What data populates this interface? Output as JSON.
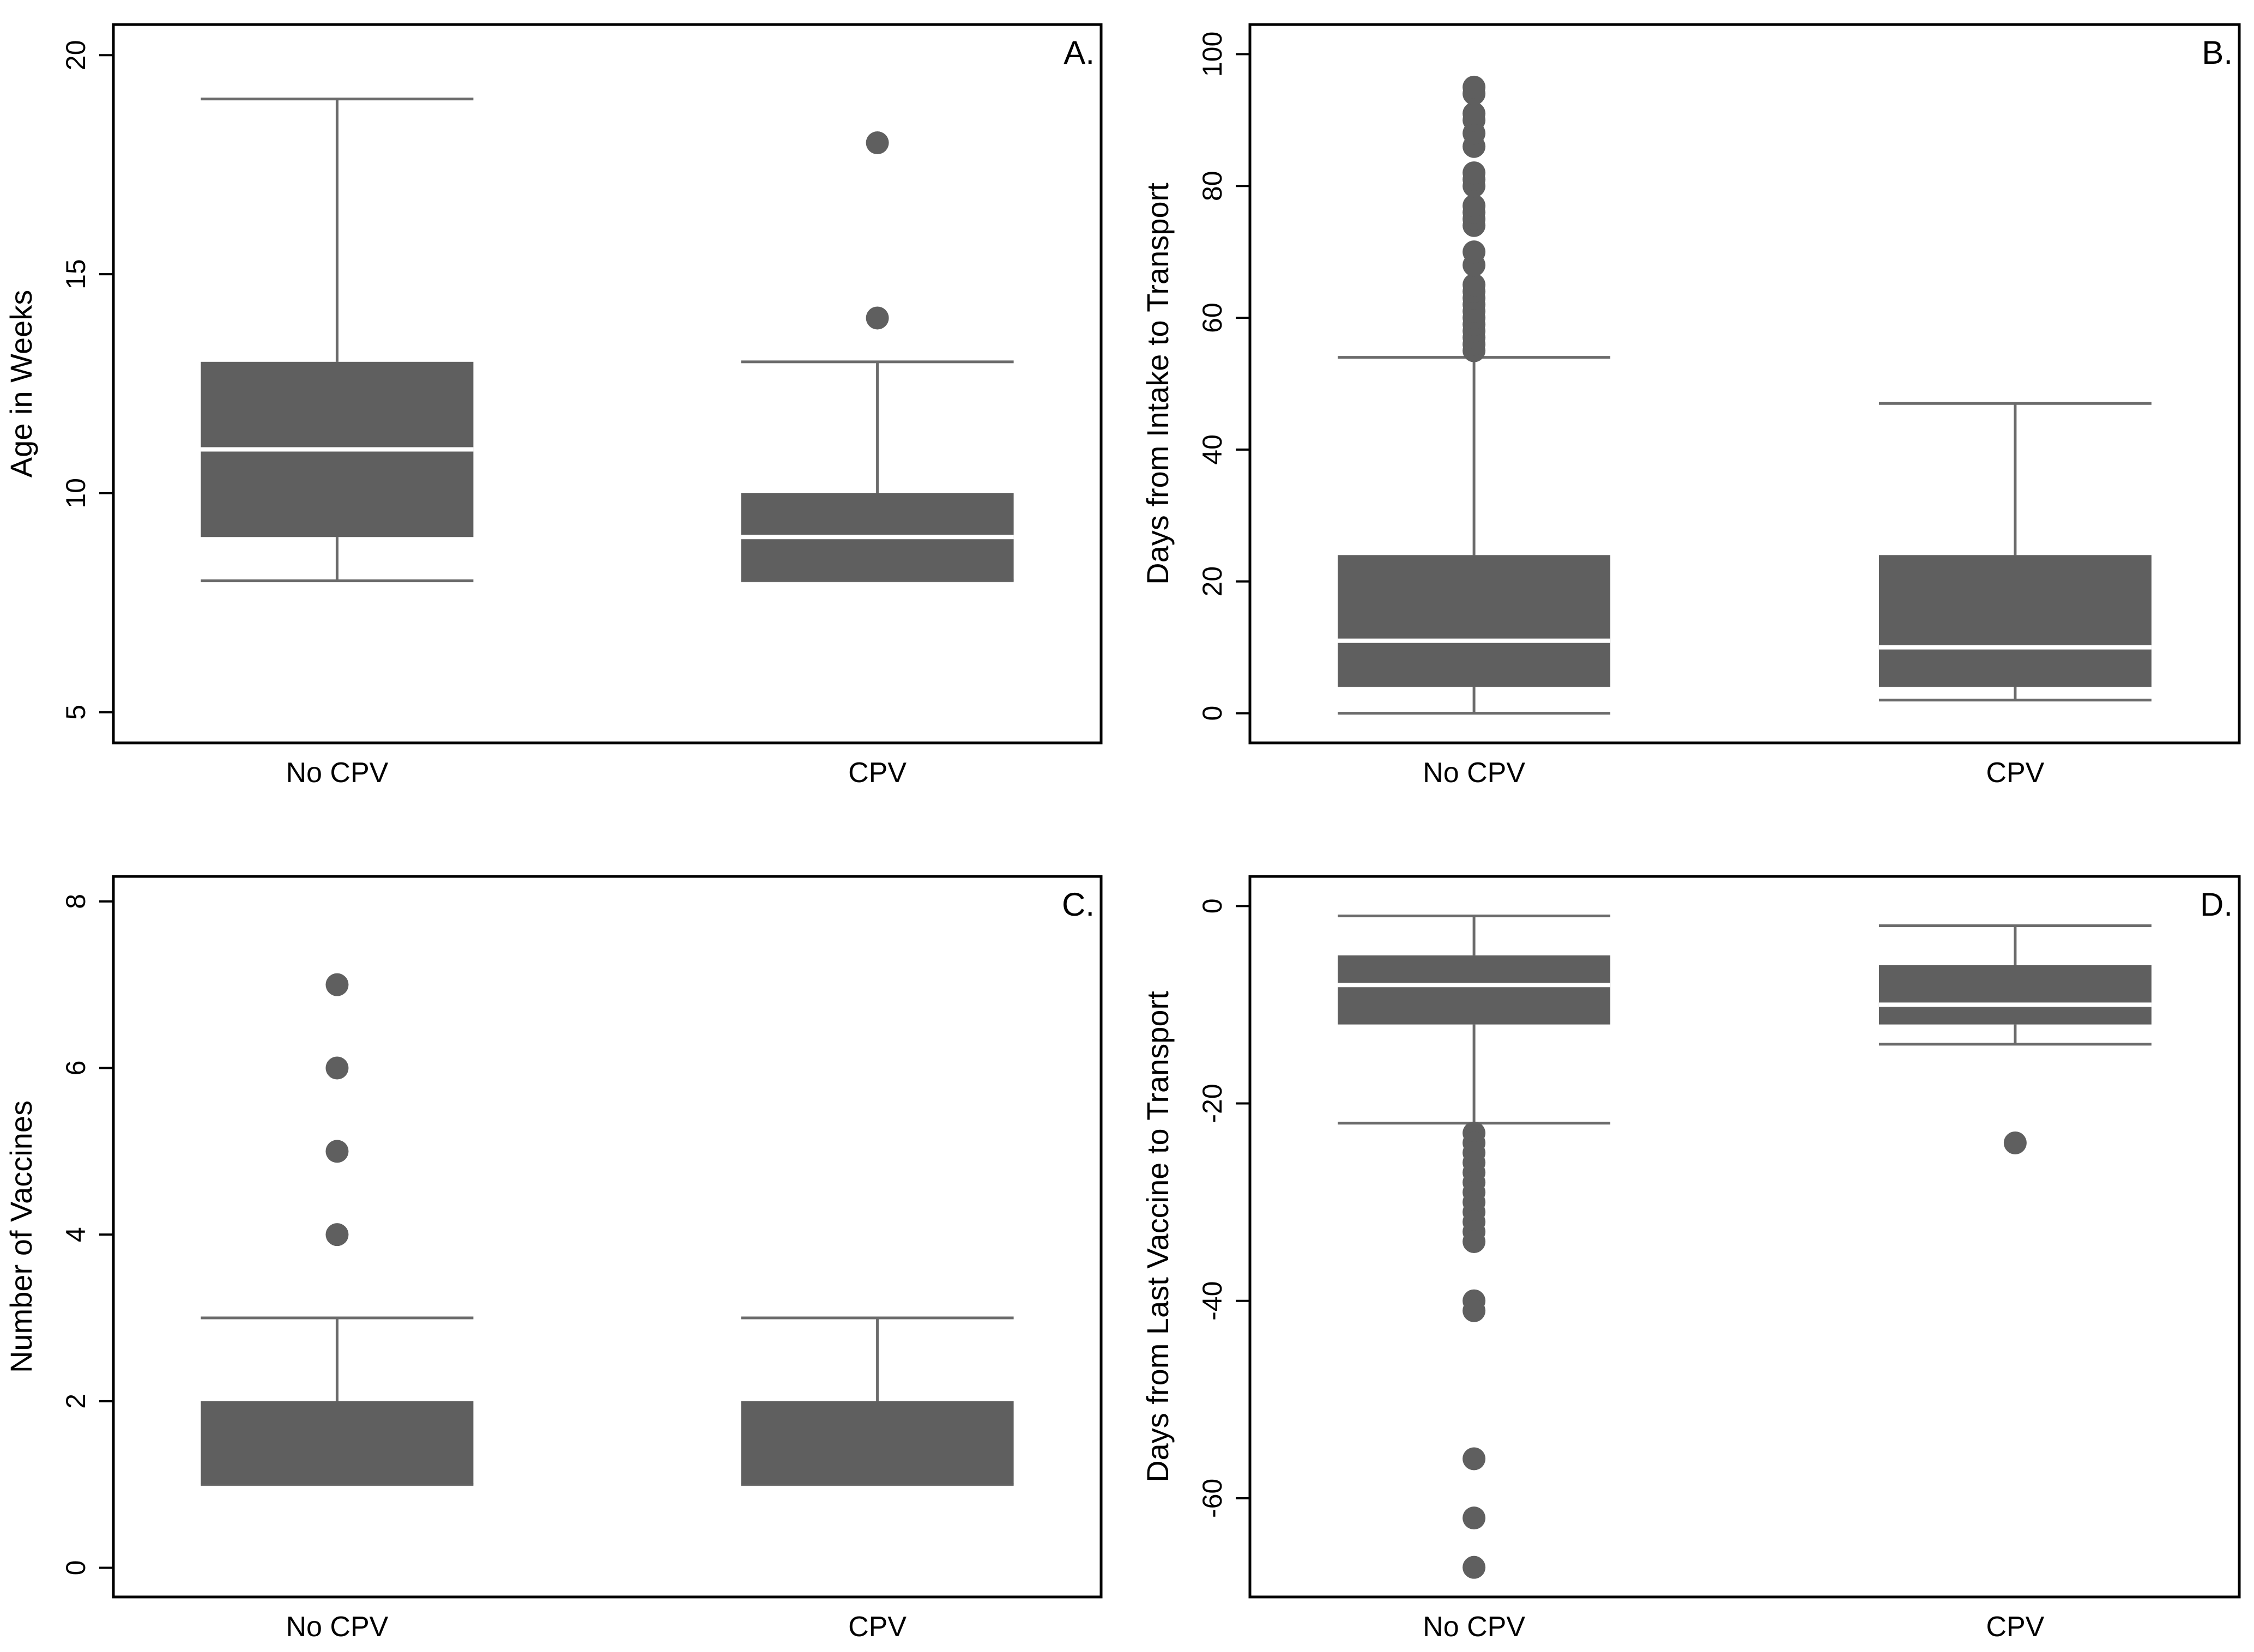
{
  "figure": {
    "background": "#ffffff",
    "box_color": "#5f5f5f",
    "whisker_color": "#6b6b6b",
    "median_color": "#ffffff"
  },
  "chart_data": [
    {
      "id": "A",
      "type": "box",
      "panel_label": "A.",
      "ylabel": "Age in Weeks",
      "xlabel": "",
      "categories": [
        "No CPV",
        "CPV"
      ],
      "ylim": [
        4.3,
        20.7
      ],
      "yticks": [
        5,
        10,
        15,
        20
      ],
      "boxes": [
        {
          "category": "No CPV",
          "whisker_low": 8,
          "q1": 9,
          "median": 11,
          "q3": 13,
          "whisker_high": 19,
          "outliers": []
        },
        {
          "category": "CPV",
          "whisker_low": 8,
          "q1": 8,
          "median": 9,
          "q3": 10,
          "whisker_high": 13,
          "outliers": [
            14,
            18
          ]
        }
      ]
    },
    {
      "id": "B",
      "type": "box",
      "panel_label": "B.",
      "ylabel": "Days from Intake to Transport",
      "xlabel": "",
      "categories": [
        "No CPV",
        "CPV"
      ],
      "ylim": [
        -4.5,
        104.5
      ],
      "yticks": [
        0,
        20,
        40,
        60,
        80,
        100
      ],
      "boxes": [
        {
          "category": "No CPV",
          "whisker_low": 0,
          "q1": 4,
          "median": 11,
          "q3": 24,
          "whisker_high": 54,
          "outliers": [
            55,
            56,
            57,
            58,
            59,
            60,
            61,
            62,
            63,
            64,
            65,
            68,
            70,
            74,
            75,
            76,
            77,
            80,
            81,
            82,
            86,
            88,
            90,
            91,
            94,
            95
          ]
        },
        {
          "category": "CPV",
          "whisker_low": 2,
          "q1": 4,
          "median": 10,
          "q3": 24,
          "whisker_high": 47,
          "outliers": []
        }
      ]
    },
    {
      "id": "C",
      "type": "box",
      "panel_label": "C.",
      "ylabel": "Number of Vaccines",
      "xlabel": "",
      "categories": [
        "No CPV",
        "CPV"
      ],
      "ylim": [
        -0.35,
        8.3
      ],
      "yticks": [
        0,
        2,
        4,
        6,
        8
      ],
      "boxes": [
        {
          "category": "No CPV",
          "whisker_low": 1,
          "q1": 1,
          "median": 1,
          "q3": 2,
          "whisker_high": 3,
          "outliers": [
            4,
            5,
            6,
            7
          ]
        },
        {
          "category": "CPV",
          "whisker_low": 1,
          "q1": 1,
          "median": 1,
          "q3": 2,
          "whisker_high": 3,
          "outliers": []
        }
      ]
    },
    {
      "id": "D",
      "type": "box",
      "panel_label": "D.",
      "ylabel": "Days from Last Vaccine to Transport",
      "xlabel": "",
      "categories": [
        "No CPV",
        "CPV"
      ],
      "ylim": [
        -70,
        3
      ],
      "yticks": [
        0,
        -20,
        -40,
        -60
      ],
      "boxes": [
        {
          "category": "No CPV",
          "whisker_low": -22,
          "q1": -12,
          "median": -8,
          "q3": -5,
          "whisker_high": -1,
          "outliers": [
            -23,
            -24,
            -25,
            -26,
            -27,
            -28,
            -29,
            -30,
            -31,
            -32,
            -33,
            -34,
            -40,
            -41,
            -56,
            -62,
            -67
          ]
        },
        {
          "category": "CPV",
          "whisker_low": -14,
          "q1": -12,
          "median": -10,
          "q3": -6,
          "whisker_high": -2,
          "outliers": [
            -24
          ]
        }
      ]
    }
  ]
}
